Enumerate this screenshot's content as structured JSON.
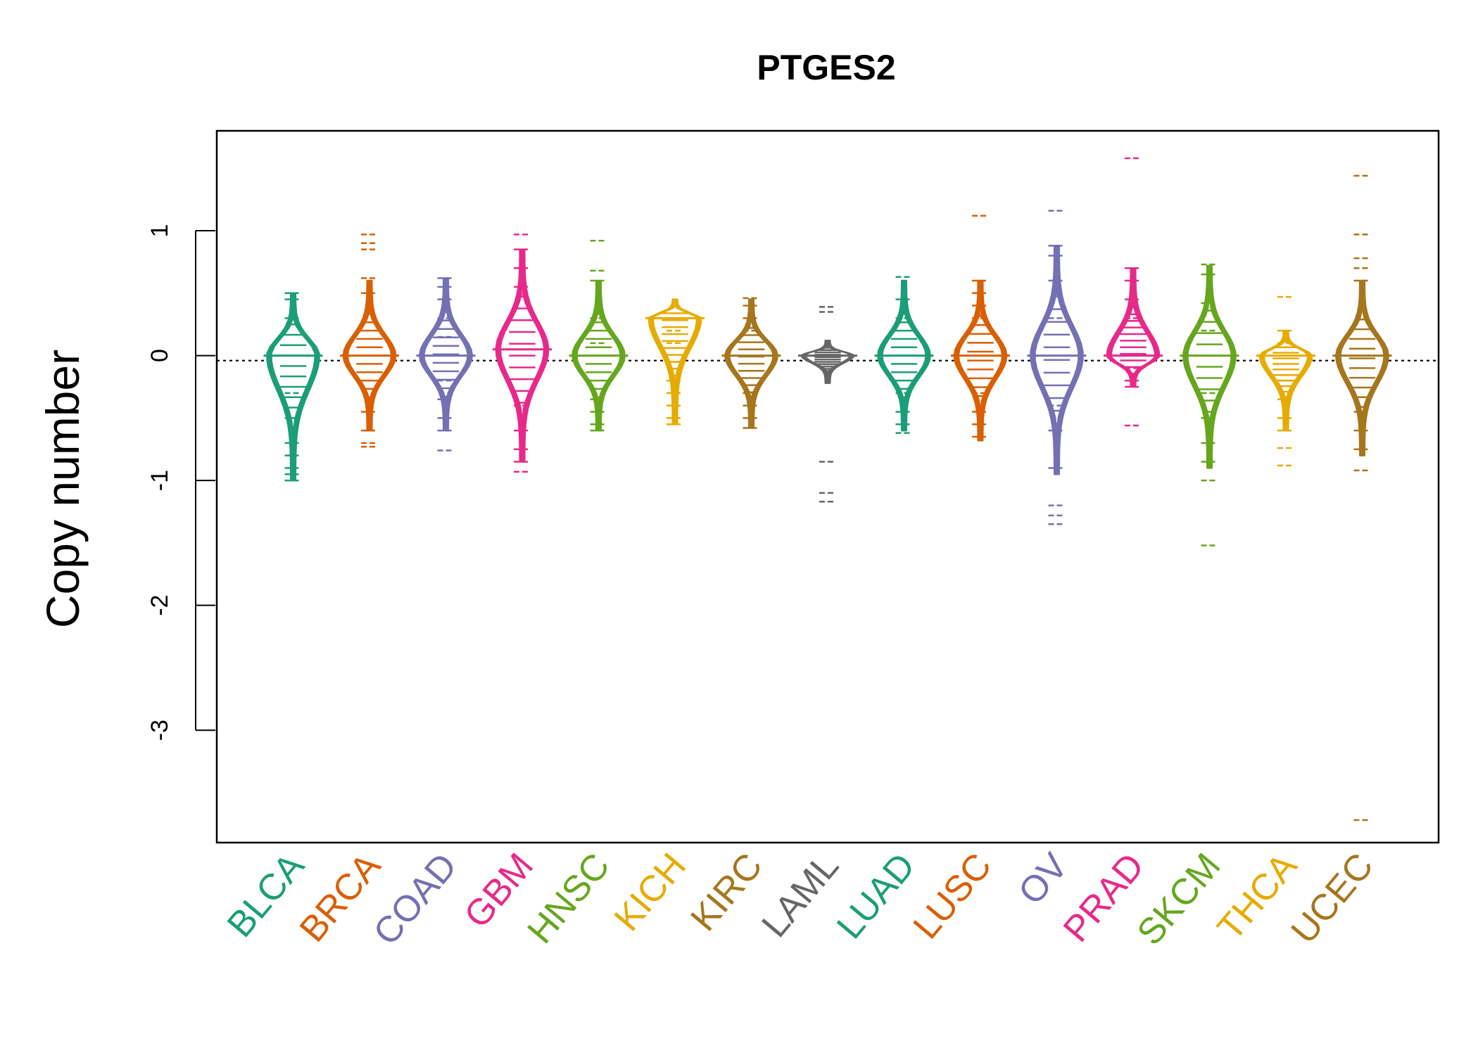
{
  "chart_data": {
    "type": "beanplot",
    "title": "PTGES2",
    "xlabel": "",
    "ylabel": "Copy number",
    "ylim": [
      -3.9,
      1.8
    ],
    "yticks": [
      1,
      0,
      -1,
      -2,
      -3
    ],
    "ytick_labels": [
      "1",
      "0",
      "-1",
      "-2",
      "-3"
    ],
    "reference_line": -0.04,
    "grid": false,
    "legend": "none",
    "categories": [
      "BLCA",
      "BRCA",
      "COAD",
      "GBM",
      "HNSC",
      "KICH",
      "KIRC",
      "LAML",
      "LUAD",
      "LUSC",
      "OV",
      "PRAD",
      "SKCM",
      "THCA",
      "UCEC"
    ],
    "colors": [
      "#1b9e77",
      "#d95f02",
      "#7570b3",
      "#e7298a",
      "#66a61e",
      "#e6ab02",
      "#a6761d",
      "#666666",
      "#1b9e77",
      "#d95f02",
      "#7570b3",
      "#e7298a",
      "#66a61e",
      "#e6ab02",
      "#a6761d"
    ],
    "series": [
      {
        "name": "BLCA",
        "min": -1.0,
        "max": 0.5,
        "median": 0.0,
        "outliers": [
          0.5,
          0.45,
          0.3,
          -0.3,
          -0.5,
          -0.7,
          -0.8,
          -0.9,
          -0.95,
          -1.0
        ]
      },
      {
        "name": "BRCA",
        "min": -0.6,
        "max": 0.6,
        "median": 0.0,
        "outliers": [
          0.97,
          0.9,
          0.85,
          0.62,
          0.5,
          -0.45,
          -0.6,
          -0.7,
          -0.73
        ]
      },
      {
        "name": "COAD",
        "min": -0.6,
        "max": 0.62,
        "median": 0.0,
        "outliers": [
          0.62,
          0.55,
          0.45,
          0.3,
          0.15,
          -0.2,
          -0.35,
          -0.5,
          -0.6,
          -0.76
        ]
      },
      {
        "name": "GBM",
        "min": -0.85,
        "max": 0.85,
        "median": 0.05,
        "outliers": [
          0.97,
          0.85,
          0.7,
          0.55,
          -0.4,
          -0.6,
          -0.75,
          -0.85,
          -0.93
        ]
      },
      {
        "name": "HNSC",
        "min": -0.6,
        "max": 0.6,
        "median": 0.0,
        "outliers": [
          0.92,
          0.68,
          0.6,
          0.3,
          0.1,
          -0.35,
          -0.45,
          -0.55,
          -0.6
        ]
      },
      {
        "name": "KICH",
        "min": -0.55,
        "max": 0.45,
        "median": 0.3,
        "outliers": [
          0.3,
          0.2,
          0.1,
          -0.05,
          -0.2,
          -0.3,
          -0.4,
          -0.5,
          -0.55
        ]
      },
      {
        "name": "KIRC",
        "min": -0.58,
        "max": 0.45,
        "median": 0.0,
        "outliers": [
          0.46,
          0.4,
          0.3,
          0.2,
          -0.3,
          -0.4,
          -0.5,
          -0.58
        ]
      },
      {
        "name": "LAML",
        "min": -0.22,
        "max": 0.12,
        "median": 0.0,
        "outliers": [
          0.39,
          0.35,
          -0.85,
          -1.1,
          -1.17
        ]
      },
      {
        "name": "LUAD",
        "min": -0.6,
        "max": 0.6,
        "median": 0.0,
        "outliers": [
          0.63,
          0.45,
          0.3,
          -0.3,
          -0.45,
          -0.55,
          -0.62
        ]
      },
      {
        "name": "LUSC",
        "min": -0.68,
        "max": 0.6,
        "median": 0.0,
        "outliers": [
          1.12,
          0.6,
          0.5,
          0.4,
          0.3,
          -0.3,
          -0.45,
          -0.55,
          -0.65
        ]
      },
      {
        "name": "OV",
        "min": -0.95,
        "max": 0.88,
        "median": 0.0,
        "outliers": [
          1.16,
          0.88,
          0.8,
          0.6,
          0.3,
          -0.4,
          -0.6,
          -0.9,
          -1.2,
          -1.28,
          -1.35
        ]
      },
      {
        "name": "PRAD",
        "min": -0.25,
        "max": 0.7,
        "median": 0.0,
        "outliers": [
          1.58,
          0.7,
          0.6,
          0.45,
          0.3,
          -0.1,
          -0.2,
          -0.25,
          -0.56
        ]
      },
      {
        "name": "SKCM",
        "min": -0.9,
        "max": 0.72,
        "median": 0.0,
        "outliers": [
          0.73,
          0.65,
          0.42,
          0.2,
          -0.3,
          -0.5,
          -0.7,
          -0.85,
          -1.0,
          -1.52
        ]
      },
      {
        "name": "THCA",
        "min": -0.6,
        "max": 0.2,
        "median": 0.0,
        "outliers": [
          0.47,
          0.2,
          0.1,
          -0.2,
          -0.35,
          -0.5,
          -0.6,
          -0.74,
          -0.88
        ]
      },
      {
        "name": "UCEC",
        "min": -0.8,
        "max": 0.6,
        "median": 0.0,
        "outliers": [
          1.44,
          0.97,
          0.78,
          0.7,
          0.6,
          -0.45,
          -0.6,
          -0.75,
          -0.92,
          -3.72
        ]
      }
    ]
  }
}
